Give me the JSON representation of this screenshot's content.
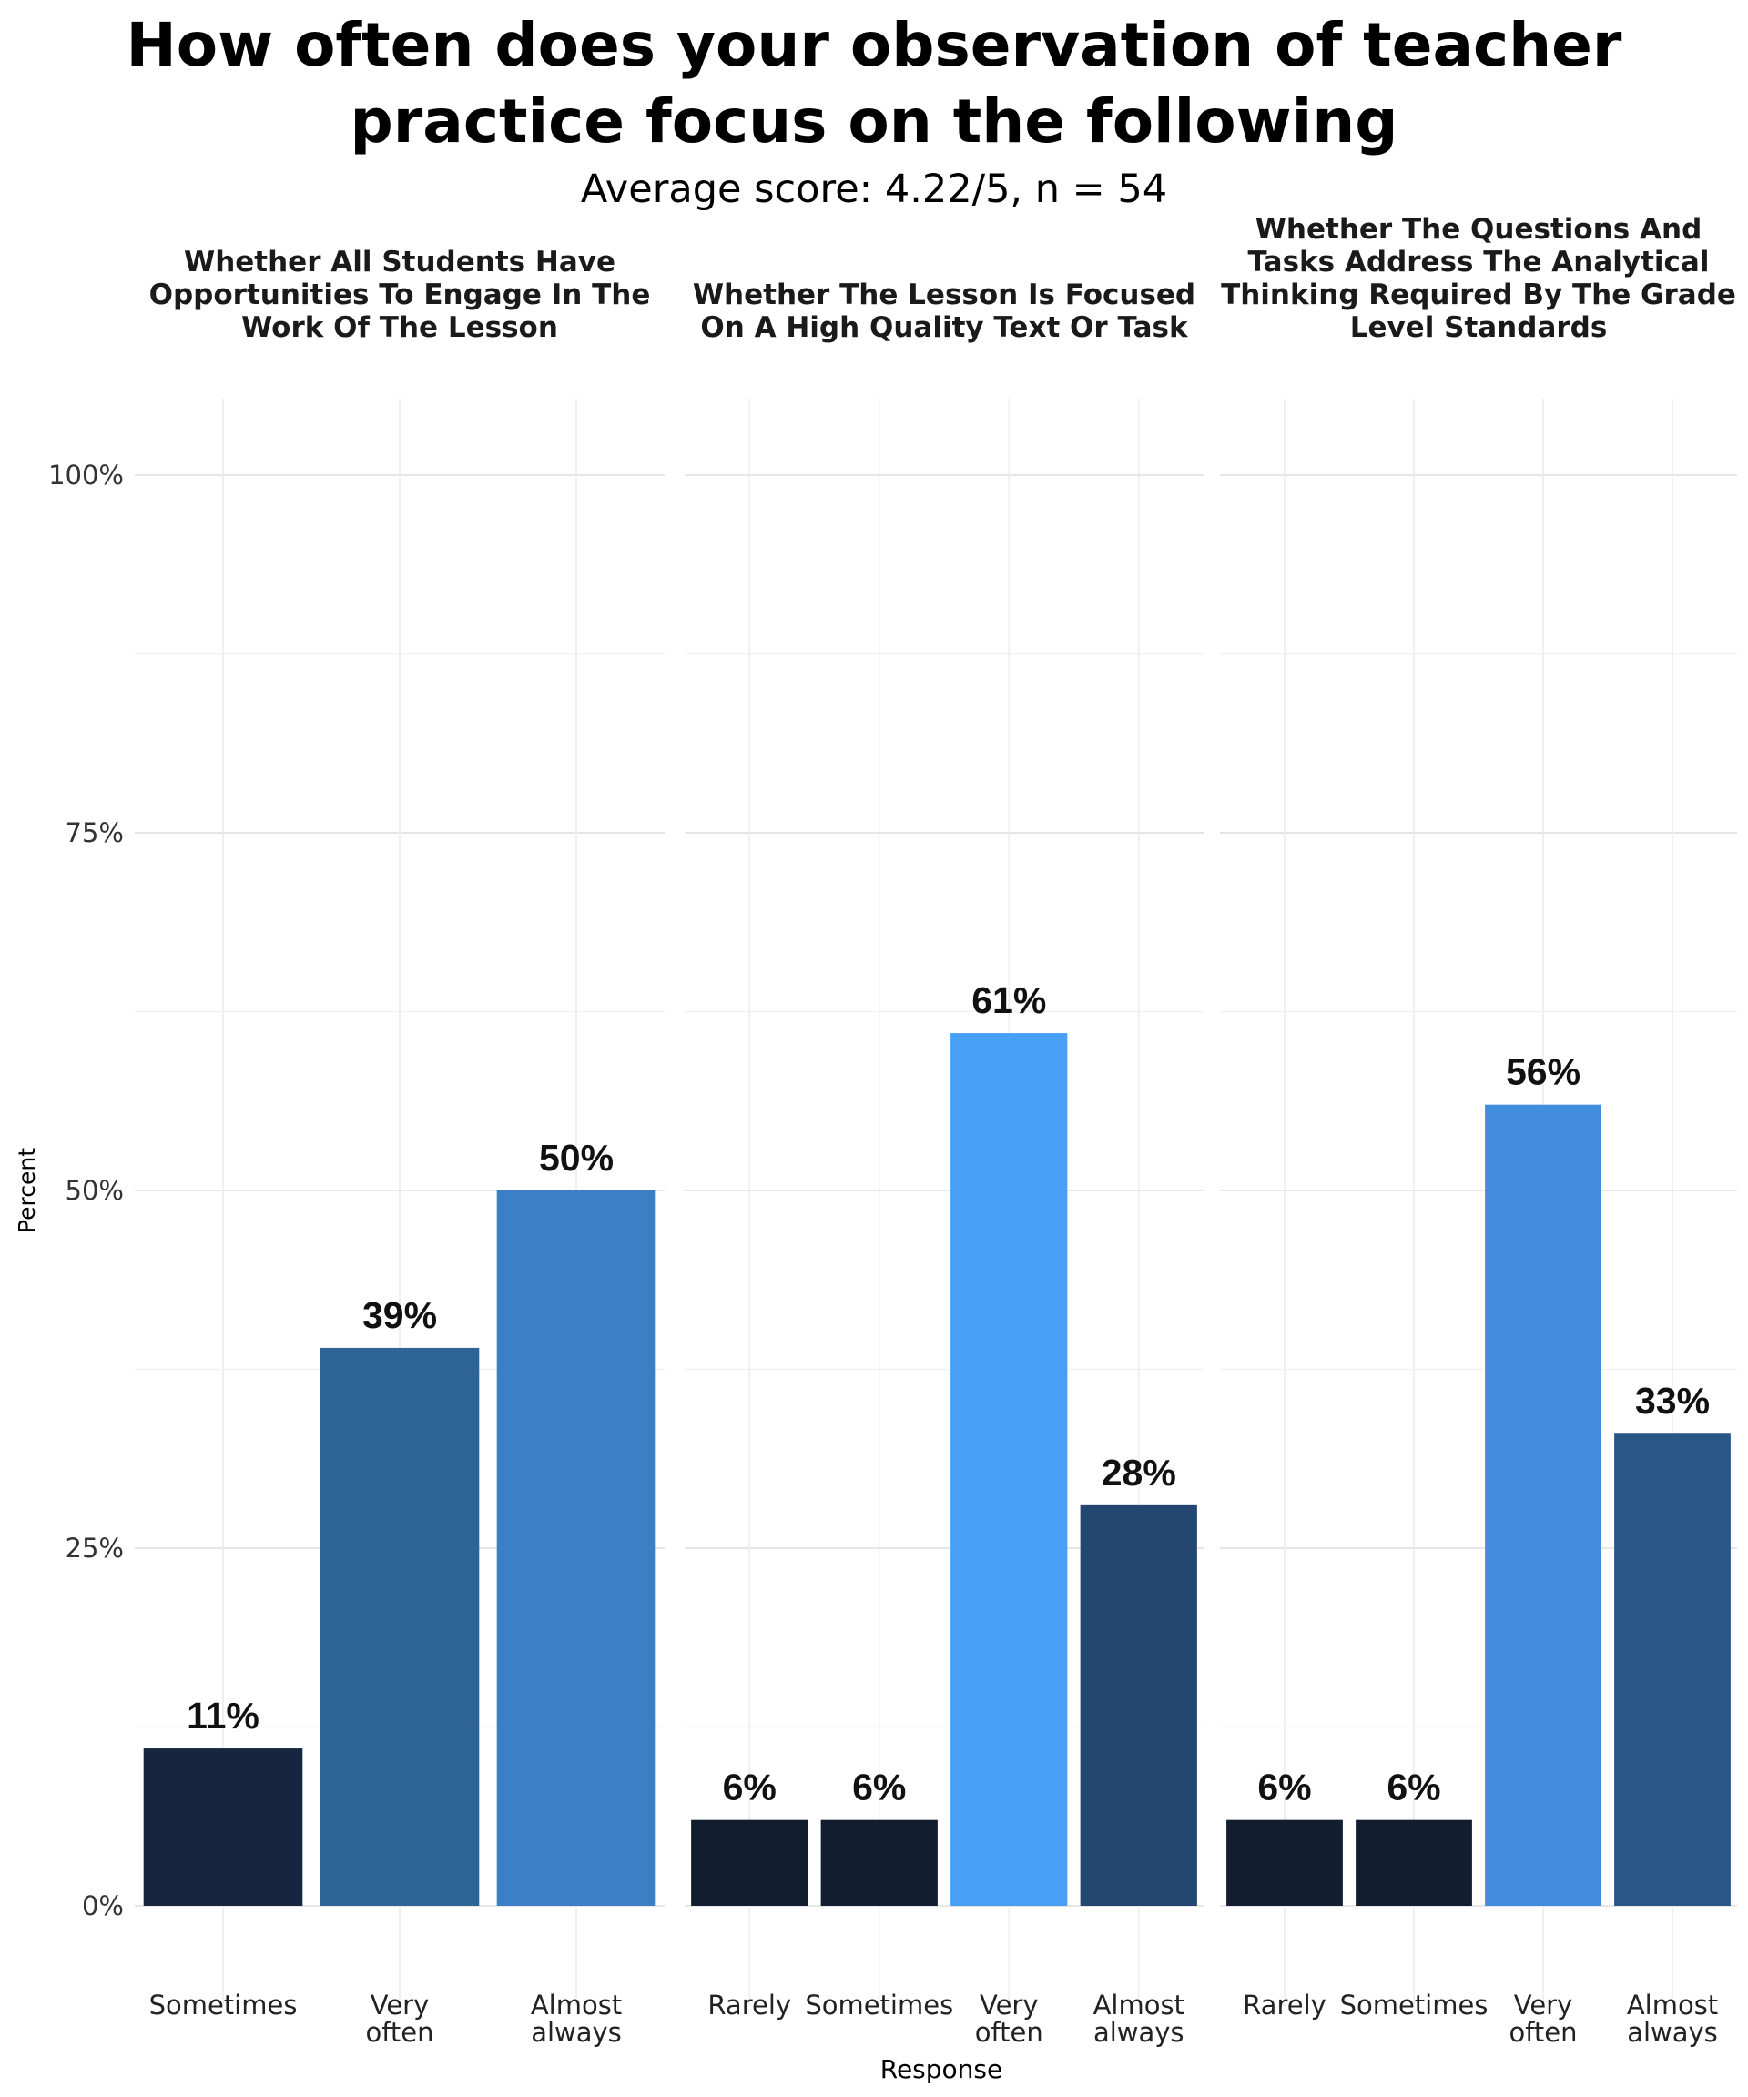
{
  "title_line1": "How often does your observation of teacher",
  "title_line2": "practice focus on the following",
  "subtitle": "Average score: 4.22/5, n = 54",
  "chart_data": {
    "type": "bar",
    "ylabel": "Percent",
    "xlabel": "Response",
    "ylim": [
      0,
      100
    ],
    "yticks": [
      "0%",
      "25%",
      "50%",
      "75%",
      "100%"
    ],
    "grid": true,
    "panels": [
      {
        "title": "Whether All Students Have Opportunities To Engage In The Work Of The Lesson",
        "title_lines": [
          "Whether All Students Have",
          "Opportunities To Engage In The",
          "Work Of The Lesson"
        ],
        "categories": [
          "Sometimes",
          "Very often",
          "Almost always"
        ],
        "category_lines": [
          [
            "Sometimes"
          ],
          [
            "Very",
            "often"
          ],
          [
            "Almost",
            "always"
          ]
        ],
        "values": [
          11,
          39,
          50
        ],
        "labels": [
          "11%",
          "39%",
          "50%"
        ],
        "colors": [
          "#16263e",
          "#2e6496",
          "#3b80c4"
        ]
      },
      {
        "title": "Whether The Lesson Is Focused On A High Quality Text Or Task",
        "title_lines": [
          "Whether The Lesson Is Focused",
          "On A High Quality Text Or Task"
        ],
        "categories": [
          "Rarely",
          "Sometimes",
          "Very often",
          "Almost always"
        ],
        "category_lines": [
          [
            "Rarely"
          ],
          [
            "Sometimes"
          ],
          [
            "Very",
            "often"
          ],
          [
            "Almost",
            "always"
          ]
        ],
        "values": [
          6,
          6,
          61,
          28
        ],
        "labels": [
          "6%",
          "6%",
          "61%",
          "28%"
        ],
        "colors": [
          "#121e30",
          "#121e30",
          "#489ff6",
          "#234770"
        ]
      },
      {
        "title": "Whether The Questions And Tasks Address The Analytical Thinking Required By The Grade Level Standards",
        "title_lines": [
          "Whether The Questions And",
          "Tasks Address The Analytical",
          "Thinking Required By The Grade",
          "Level Standards"
        ],
        "categories": [
          "Rarely",
          "Sometimes",
          "Very often",
          "Almost always"
        ],
        "category_lines": [
          [
            "Rarely"
          ],
          [
            "Sometimes"
          ],
          [
            "Very",
            "often"
          ],
          [
            "Almost",
            "always"
          ]
        ],
        "values": [
          6,
          6,
          56,
          33
        ],
        "labels": [
          "6%",
          "6%",
          "56%",
          "33%"
        ],
        "colors": [
          "#121e30",
          "#121e30",
          "#428ddd",
          "#295888"
        ]
      }
    ]
  }
}
